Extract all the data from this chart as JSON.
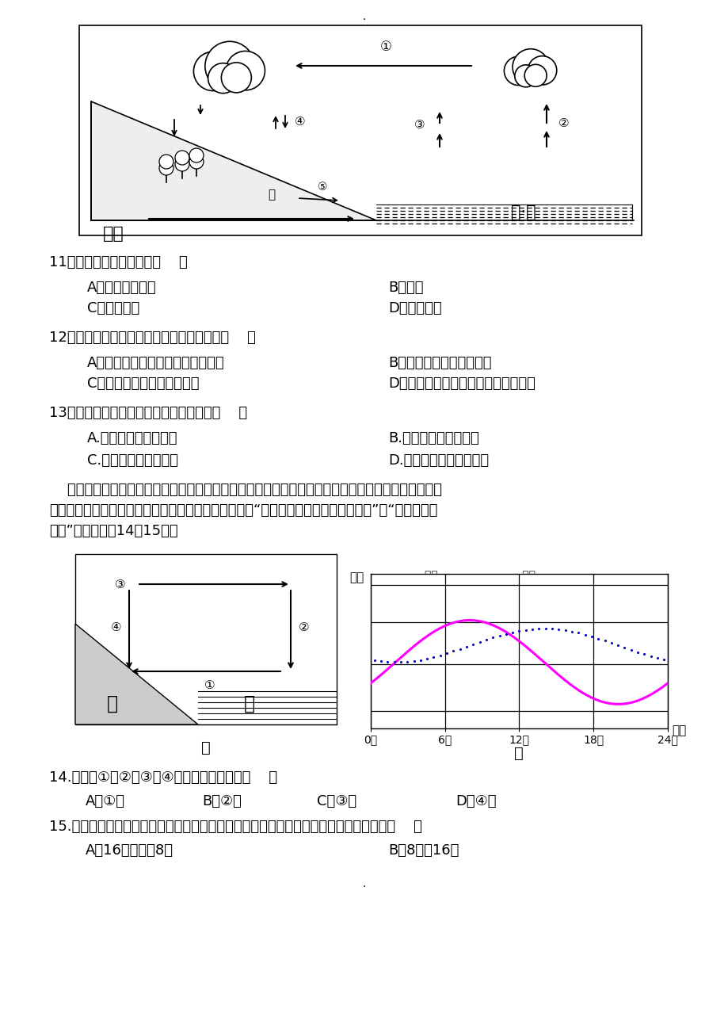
{
  "page_bg": "#ffffff",
  "q11_text": "11．水循环的主要动力是（    ）",
  "q11_A": "A．水的三相变化",
  "q11_B": "B．重力",
  "q11_C": "C．大气运动",
  "q11_D": "D．太阳辐射",
  "q12_text": "12．下列地理现象中，属于海陆间循环的是（    ）",
  "q12_A": "A．祝连山的冰雪融水汇入黄河上游",
  "q12_B": "B．新疆罗布泊的湖水蒸发",
  "q12_C": "C．天山汇入南疆的冰雪融水",
  "q12_D": "D．新疆的坐儿井，引地下水灸溉农田",
  "q13_text": "13．拦蓄和利用雨水，可以缓解的矛盾是（    ）",
  "q13_A": "A.水资源空间分配不均",
  "q13_B": "B.水资源时间分配不均",
  "q13_C": "C.水资源地区使用不均",
  "q13_D": "D.农业与工业的用水不均",
  "q14_text": "14.甲图中①、②、③、④四处气温最高的是（    ）",
  "q14_A": "A．①处",
  "q14_B": "B．②处",
  "q14_C": "C．③处",
  "q14_D": "D．④处",
  "q15_text": "15.为了完成女主角头发向后飘逸的场景，如果你是导演，你会选择什么时间段完成拍摄（    ）",
  "q15_A": "A．16时至次日8时",
  "q15_B": "B．8时至16时"
}
